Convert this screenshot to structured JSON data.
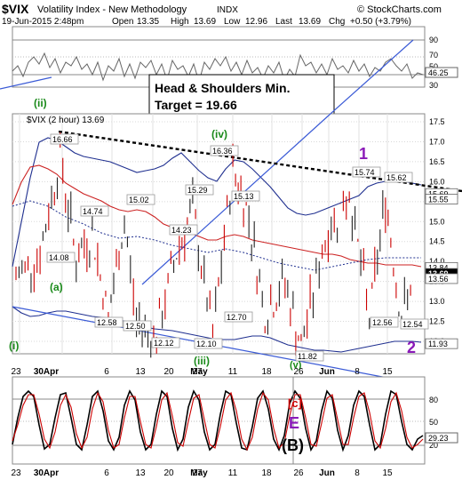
{
  "header": {
    "symbol": "$VIX",
    "name": "Volatility Index - New Methodology",
    "exchange": "INDX",
    "watermark": "© StockCharts.com",
    "date": "19-Jun-2015 2:48pm",
    "open_label": "Open",
    "open": "13.35",
    "high_label": "High",
    "high": "13.69",
    "low_label": "Low",
    "low": "12.96",
    "last_label": "Last",
    "last": "13.69",
    "chg_label": "Chg",
    "chg": "+0.50 (+3.79%)"
  },
  "top_panel": {
    "ticks": [
      "90",
      "70",
      "50",
      "30"
    ],
    "value_badge": "46.25"
  },
  "annotation_box": {
    "line1": "Head & Shoulders Min.",
    "line2": "Target = 19.66"
  },
  "main_panel": {
    "legend": "$VIX (2 hour) 13.69",
    "price_ticks": [
      "17.5",
      "17.0",
      "16.5",
      "16.0",
      "15.5",
      "15.0",
      "14.5",
      "14.0",
      "13.5",
      "13.0",
      "12.5",
      "12.0"
    ],
    "value_badges": [
      {
        "label": "15.69",
        "color": "#ffffff",
        "text": "#000000"
      },
      {
        "label": "15.55",
        "color": "#ffffff",
        "text": "#000000"
      },
      {
        "label": "13.84",
        "color": "#ffffff",
        "text": "#000000"
      },
      {
        "label": "13.69",
        "color": "#000000",
        "text": "#ffffff"
      },
      {
        "label": "13.56",
        "color": "#ffffff",
        "text": "#000000"
      },
      {
        "label": "11.93",
        "color": "#ffffff",
        "text": "#000000"
      }
    ],
    "peak_labels": [
      "16.66",
      "14.08",
      "14.74",
      "15.02",
      "12.58",
      "12.50",
      "12.12",
      "14.23",
      "15.29",
      "12.10",
      "16.36",
      "15.13",
      "12.70",
      "11.82",
      "15.74",
      "12.56",
      "15.62",
      "12.54"
    ],
    "wave_labels": [
      {
        "text": "(ii)",
        "color": "#1a8a1a"
      },
      {
        "text": "(a)",
        "color": "#1a8a1a"
      },
      {
        "text": "(i)",
        "color": "#1a8a1a"
      },
      {
        "text": "(iv)",
        "color": "#1a8a1a"
      },
      {
        "text": "(iii)",
        "color": "#1a8a1a"
      },
      {
        "text": "(v)",
        "color": "#1a8a1a"
      },
      {
        "text": "1",
        "color": "#8a1ab8"
      },
      {
        "text": "2",
        "color": "#8a1ab8"
      }
    ]
  },
  "bottom_panel": {
    "ticks": [
      "80",
      "50",
      "20"
    ],
    "value_badge": "29.23",
    "labels": [
      {
        "text": "[c]",
        "color": "#cc0000"
      },
      {
        "text": "E",
        "color": "#8a1ab8"
      },
      {
        "text": "(B)",
        "color": "#000000"
      }
    ]
  },
  "x_axis": {
    "labels": [
      "23",
      "30Apr",
      "6",
      "13",
      "20",
      "27",
      "May",
      "11",
      "18",
      "26",
      "Jun",
      "8",
      "15"
    ]
  },
  "chart_data": {
    "type": "line",
    "title": "$VIX Volatility Index - New Methodology",
    "series_main_name": "$VIX (2 hour)",
    "ylim": [
      11.6,
      17.8
    ],
    "x": [
      "23",
      "30Apr",
      "6",
      "13",
      "20",
      "27",
      "May",
      "11",
      "18",
      "26",
      "Jun",
      "8",
      "15"
    ],
    "price_path": [
      [
        0,
        13.6
      ],
      [
        0.6,
        14.2
      ],
      [
        1.1,
        16.66
      ],
      [
        1.5,
        14.08
      ],
      [
        1.9,
        14.74
      ],
      [
        2.3,
        12.58
      ],
      [
        2.7,
        15.02
      ],
      [
        3.0,
        12.5
      ],
      [
        3.5,
        12.12
      ],
      [
        4.0,
        14.23
      ],
      [
        4.4,
        15.29
      ],
      [
        4.9,
        12.1
      ],
      [
        5.4,
        16.36
      ],
      [
        5.8,
        15.13
      ],
      [
        6.2,
        12.7
      ],
      [
        6.7,
        13.5
      ],
      [
        7.1,
        11.82
      ],
      [
        7.7,
        14.6
      ],
      [
        8.3,
        15.74
      ],
      [
        8.8,
        12.56
      ],
      [
        9.2,
        15.62
      ],
      [
        9.6,
        12.54
      ],
      [
        9.9,
        13.69
      ]
    ],
    "annotations": [
      "Head & Shoulders Min.",
      "Target = 19.66"
    ],
    "top_indicator_range": [
      10,
      100
    ],
    "bottom_indicator_range": [
      0,
      100
    ],
    "bottom_indicator_last": 29.23
  },
  "colors": {
    "price_up": "#222222",
    "price_down": "#cc0000",
    "upper_band": "#1f2f8f",
    "ma": "#cc2222",
    "trendline": "#3b5bd6",
    "neckline": "#000000"
  }
}
